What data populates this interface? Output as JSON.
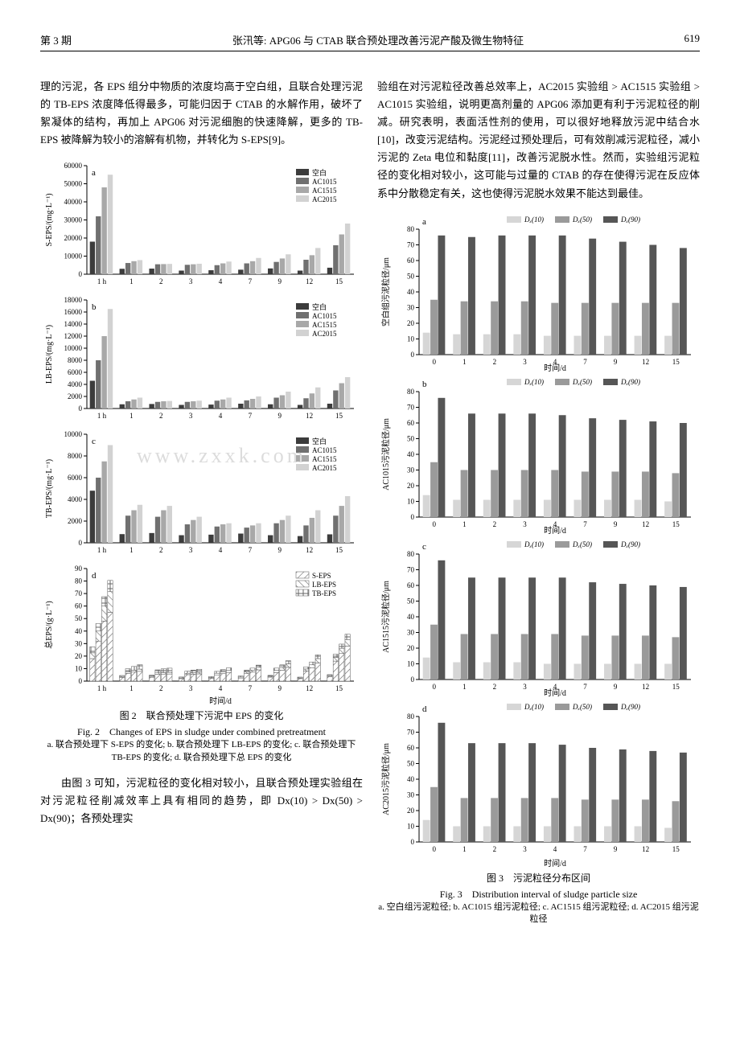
{
  "header": {
    "issue": "第 3 期",
    "title": "张汛等: APG06 与 CTAB 联合预处理改善污泥产酸及微生物特征",
    "page": "619"
  },
  "left_text_1": "理的污泥，各 EPS 组分中物质的浓度均高于空白组，且联合处理污泥的 TB-EPS 浓度降低得最多，可能归因于 CTAB 的水解作用，破坏了絮凝体的结构，再加上 APG06 对污泥细胞的快速降解，更多的 TB-EPS 被降解为较小的溶解有机物，并转化为 S-EPS[9]。",
  "left_text_2": "由图 3 可知，污泥粒径的变化相对较小，且联合预处理实验组在对污泥粒径削减效率上具有相同的趋势，即 Dx(10) > Dx(50) > Dx(90)；各预处理实",
  "right_text_1": "验组在对污泥粒径改善总效率上，AC2015 实验组 > AC1515 实验组 > AC1015 实验组，说明更高剂量的 APG06 添加更有利于污泥粒径的削减。研究表明，表面活性剂的使用，可以很好地释放污泥中结合水[10]，改变污泥结构。污泥经过预处理后，可有效削减污泥粒径，减小污泥的 Zeta 电位和黏度[11]，改善污泥脱水性。然而，实验组污泥粒径的变化相对较小，这可能与过量的 CTAB 的存在使得污泥在反应体系中分散稳定有关，这也使得污泥脱水效果不能达到最佳。",
  "fig2": {
    "caption_cn": "图 2　联合预处理下污泥中 EPS 的变化",
    "caption_en": "Fig. 2　Changes of EPS in sludge under combined pretreatment",
    "subcaption": "a. 联合预处理下 S-EPS 的变化; b. 联合预处理下 LB-EPS 的变化; c. 联合预处理下 TB-EPS 的变化; d. 联合预处理下总 EPS 的变化",
    "xlabel": "时间/d",
    "x_categories": [
      "1 h",
      "1",
      "2",
      "3",
      "4",
      "7",
      "9",
      "12",
      "15"
    ],
    "legend_abc": [
      "空白",
      "AC1015",
      "AC1515",
      "AC2015"
    ],
    "legend_d": [
      "S-EPS",
      "LB-EPS",
      "TB-EPS"
    ],
    "colors_abc": [
      "#3c3c3c",
      "#707070",
      "#a8a8a8",
      "#d2d2d2"
    ],
    "colors_d_hatch": [
      "#6b6b6b",
      "#6b6b6b",
      "#6b6b6b"
    ],
    "grid_color": "#e6e6e6",
    "axis_color": "#000000",
    "label_fontsize": 10,
    "tick_fontsize": 9,
    "panels": {
      "a": {
        "ylabel": "S-EPS/(mg·L⁻¹)",
        "ylim": [
          0,
          60000
        ],
        "ytick_step": 10000,
        "data": {
          "空白": [
            18000,
            3000,
            3100,
            2000,
            2200,
            2500,
            3200,
            2000,
            3600
          ],
          "AC1015": [
            32000,
            6200,
            5500,
            5200,
            5000,
            6000,
            6800,
            8000,
            16000
          ],
          "AC1515": [
            48000,
            7200,
            5600,
            5500,
            6000,
            7200,
            8700,
            10500,
            22000
          ],
          "AC2015": [
            55000,
            7800,
            5700,
            5800,
            7000,
            9000,
            11000,
            14500,
            28000
          ]
        }
      },
      "b": {
        "ylabel": "LB-EPS/(mg·L⁻¹)",
        "ylim": [
          0,
          18000
        ],
        "ytick_step": 2000,
        "data": {
          "空白": [
            4600,
            700,
            750,
            600,
            650,
            800,
            700,
            600,
            800
          ],
          "AC1015": [
            8000,
            1200,
            1100,
            1100,
            1300,
            1350,
            1800,
            1700,
            3000
          ],
          "AC1515": [
            12000,
            1500,
            1200,
            1200,
            1500,
            1600,
            2200,
            2500,
            4200
          ],
          "AC2015": [
            16500,
            1800,
            1250,
            1300,
            1800,
            2000,
            2800,
            3500,
            5200
          ]
        }
      },
      "c": {
        "ylabel": "TB-EPS/(mg·L⁻¹)",
        "ylim": [
          0,
          10000
        ],
        "ytick_step": 2000,
        "data": {
          "空白": [
            4800,
            800,
            900,
            700,
            750,
            850,
            700,
            620,
            780
          ],
          "AC1015": [
            6000,
            2500,
            2400,
            1700,
            1500,
            1400,
            1800,
            1600,
            2500
          ],
          "AC1515": [
            7500,
            3000,
            3000,
            2100,
            1700,
            1600,
            2100,
            2300,
            3400
          ],
          "AC2015": [
            9000,
            3500,
            3400,
            2400,
            1800,
            1800,
            2500,
            3000,
            4300
          ]
        }
      },
      "d": {
        "ylabel": "总EPS/(g·L⁻¹)",
        "ylim": [
          0,
          90
        ],
        "ytick_step": 10,
        "series": [
          "空白",
          "AC1015",
          "AC1515",
          "AC2015"
        ],
        "stacks": [
          "S-EPS",
          "LB-EPS",
          "TB-EPS"
        ],
        "data": {
          "空白": {
            "S-EPS": [
              18,
              3,
              3.1,
              2,
              2.2,
              2.5,
              3.2,
              2,
              3.6
            ],
            "LB-EPS": [
              4.6,
              0.7,
              0.75,
              0.6,
              0.65,
              0.8,
              0.7,
              0.6,
              0.8
            ],
            "TB-EPS": [
              4.8,
              0.8,
              0.9,
              0.7,
              0.75,
              0.85,
              0.7,
              0.62,
              0.78
            ]
          },
          "AC1015": {
            "S-EPS": [
              32,
              6.2,
              5.5,
              5.2,
              5,
              6,
              6.8,
              8,
              16
            ],
            "LB-EPS": [
              8,
              1.2,
              1.1,
              1.1,
              1.3,
              1.35,
              1.8,
              1.7,
              3
            ],
            "TB-EPS": [
              6,
              2.5,
              2.4,
              1.7,
              1.5,
              1.4,
              1.8,
              1.6,
              2.5
            ]
          },
          "AC1515": {
            "S-EPS": [
              48,
              7.2,
              5.6,
              5.5,
              6,
              7.2,
              8.7,
              10.5,
              22
            ],
            "LB-EPS": [
              12,
              1.5,
              1.2,
              1.2,
              1.5,
              1.6,
              2.2,
              2.5,
              4.2
            ],
            "TB-EPS": [
              7.5,
              3,
              3,
              2.1,
              1.7,
              1.6,
              2.1,
              2.3,
              3.4
            ]
          },
          "AC2015": {
            "S-EPS": [
              55,
              7.8,
              5.7,
              5.8,
              7,
              9,
              11,
              14.5,
              28
            ],
            "LB-EPS": [
              16.5,
              1.8,
              1.25,
              1.3,
              1.8,
              2,
              2.8,
              3.5,
              5.2
            ],
            "TB-EPS": [
              9,
              3.5,
              3.4,
              2.4,
              1.8,
              1.8,
              2.5,
              3,
              4.3
            ]
          }
        }
      }
    }
  },
  "fig3": {
    "caption_cn": "图 3　污泥粒径分布区间",
    "caption_en": "Fig. 3　Distribution interval of sludge particle size",
    "subcaption": "a. 空白组污泥粒径; b. AC1015 组污泥粒径; c. AC1515 组污泥粒径; d. AC2015 组污泥粒径",
    "xlabel": "时间/d",
    "x_categories": [
      "0",
      "1",
      "2",
      "3",
      "4",
      "7",
      "9",
      "12",
      "15"
    ],
    "legend": [
      "Dₓ(10)",
      "Dₓ(50)",
      "Dₓ(90)"
    ],
    "colors": [
      "#d6d6d6",
      "#9a9a9a",
      "#565656"
    ],
    "ylim": [
      0,
      80
    ],
    "ytick_step": 10,
    "grid_color": "#e6e6e6",
    "axis_color": "#000000",
    "panels": {
      "a": {
        "ylabel": "空白组污泥粒径/μm",
        "data": {
          "Dₓ(10)": [
            14,
            13,
            13,
            13,
            12,
            12,
            12,
            12,
            12
          ],
          "Dₓ(50)": [
            35,
            34,
            34,
            34,
            33,
            33,
            33,
            33,
            33
          ],
          "Dₓ(90)": [
            76,
            75,
            76,
            76,
            76,
            74,
            72,
            70,
            68
          ]
        }
      },
      "b": {
        "ylabel": "AC1015污泥粒径/μm",
        "data": {
          "Dₓ(10)": [
            14,
            11,
            11,
            11,
            11,
            11,
            11,
            11,
            10
          ],
          "Dₓ(50)": [
            35,
            30,
            30,
            30,
            30,
            29,
            29,
            29,
            28
          ],
          "Dₓ(90)": [
            76,
            66,
            66,
            66,
            65,
            63,
            62,
            61,
            60
          ]
        }
      },
      "c": {
        "ylabel": "AC1515污泥粒径/μm",
        "data": {
          "Dₓ(10)": [
            14,
            11,
            11,
            11,
            10,
            10,
            10,
            10,
            10
          ],
          "Dₓ(50)": [
            35,
            29,
            29,
            29,
            29,
            28,
            28,
            28,
            27
          ],
          "Dₓ(90)": [
            76,
            65,
            65,
            65,
            65,
            62,
            61,
            60,
            59
          ]
        }
      },
      "d": {
        "ylabel": "AC2015污泥粒径/μm",
        "data": {
          "Dₓ(10)": [
            14,
            10,
            10,
            10,
            10,
            10,
            10,
            10,
            9
          ],
          "Dₓ(50)": [
            35,
            28,
            28,
            28,
            28,
            27,
            27,
            27,
            26
          ],
          "Dₓ(90)": [
            76,
            63,
            63,
            63,
            62,
            60,
            59,
            58,
            57
          ]
        }
      }
    }
  },
  "watermark": "www.zxxk.com"
}
